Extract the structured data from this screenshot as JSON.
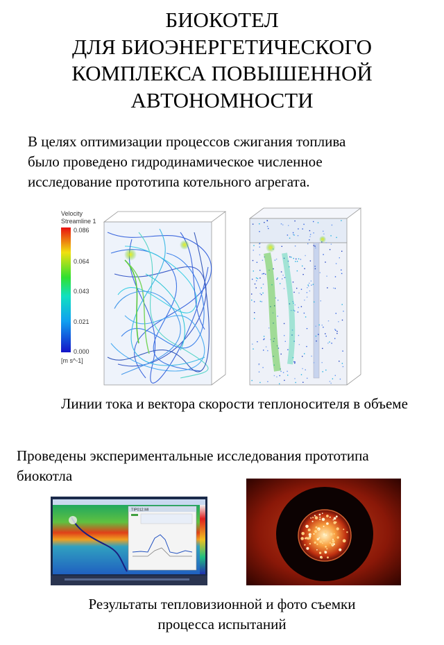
{
  "title_lines": [
    "БИОКОТЕЛ",
    "ДЛЯ БИОЭНЕРГЕТИЧЕСКОГО",
    "КОМПЛЕКСА ПОВЫШЕННОЙ",
    "АВТОНОМНОСТИ"
  ],
  "intro_lines": [
    "В целях оптимизации процессов сжигания топлива",
    "было проведено гидродинамическое численное",
    "исследование прототипа котельного агрегата."
  ],
  "simulation": {
    "legend_title_1": "Velocity",
    "legend_title_2": "Streamline 1",
    "legend_values": [
      "0.086",
      "0.064",
      "0.043",
      "0.021",
      "0.000"
    ],
    "legend_unit": "[m s^-1]"
  },
  "caption_1": "Линии тока и вектора скорости теплоносителя в объеме",
  "experiment_lines": [
    "Проведены экспериментальные исследования прототипа",
    "биокотла"
  ],
  "caption_2_lines": [
    "Результаты тепловизионной и фото съемки",
    "процесса испытаний"
  ],
  "thermal_screen": {
    "window_title": "TIP012.MI"
  },
  "colors": {
    "stream_blue": "#1e4fd8",
    "stream_cyan": "#20c8e0",
    "stream_green": "#40c020",
    "furnace_orange": "#e86020"
  }
}
